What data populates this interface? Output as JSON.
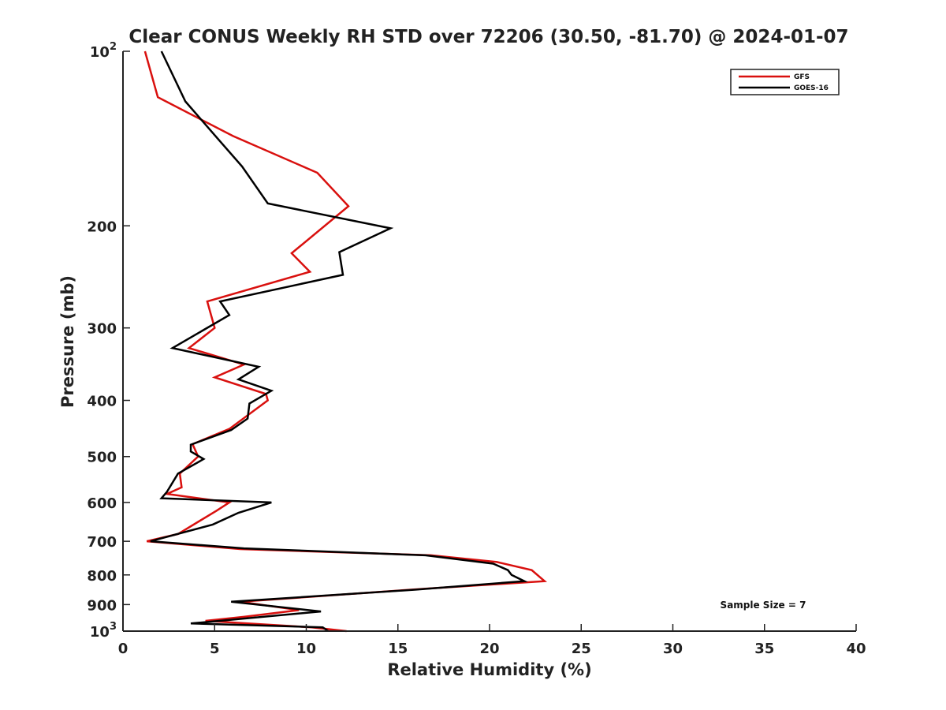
{
  "chart_data": {
    "type": "line",
    "title": "Clear CONUS Weekly RH STD over 72206 (30.50, -81.70) @ 2024-01-07",
    "xlabel": "Relative Humidity (%)",
    "ylabel": "Pressure (mb)",
    "xlim": [
      0,
      40
    ],
    "ylim": [
      100,
      1000
    ],
    "y_scale": "log",
    "y_reversed": true,
    "x_ticks": [
      "0",
      "5",
      "10",
      "15",
      "20",
      "25",
      "30",
      "35",
      "40"
    ],
    "y_ticks": [
      {
        "value": 100,
        "base": "10",
        "exp": "2"
      },
      {
        "value": 200,
        "label": "200"
      },
      {
        "value": 300,
        "label": "300"
      },
      {
        "value": 400,
        "label": "400"
      },
      {
        "value": 500,
        "label": "500"
      },
      {
        "value": 600,
        "label": "600"
      },
      {
        "value": 700,
        "label": "700"
      },
      {
        "value": 800,
        "label": "800"
      },
      {
        "value": 900,
        "label": "900"
      },
      {
        "value": 1000,
        "base": "10",
        "exp": "3"
      }
    ],
    "grid": false,
    "legend_position": "top-right",
    "annotation": "Sample Size = 7",
    "series": [
      {
        "name": "GFS",
        "color": "#d9100e",
        "points": [
          {
            "x": 1.2,
            "y": 100
          },
          {
            "x": 1.9,
            "y": 120
          },
          {
            "x": 6.0,
            "y": 140
          },
          {
            "x": 10.6,
            "y": 162
          },
          {
            "x": 12.3,
            "y": 185
          },
          {
            "x": 9.2,
            "y": 223
          },
          {
            "x": 10.2,
            "y": 240
          },
          {
            "x": 4.6,
            "y": 270
          },
          {
            "x": 5.0,
            "y": 300
          },
          {
            "x": 3.6,
            "y": 325
          },
          {
            "x": 6.6,
            "y": 347
          },
          {
            "x": 5.0,
            "y": 365
          },
          {
            "x": 7.8,
            "y": 390
          },
          {
            "x": 7.9,
            "y": 400
          },
          {
            "x": 5.8,
            "y": 448
          },
          {
            "x": 3.8,
            "y": 476
          },
          {
            "x": 4.1,
            "y": 500
          },
          {
            "x": 3.1,
            "y": 535
          },
          {
            "x": 3.2,
            "y": 565
          },
          {
            "x": 2.4,
            "y": 580
          },
          {
            "x": 5.8,
            "y": 600
          },
          {
            "x": 5.1,
            "y": 620
          },
          {
            "x": 3.0,
            "y": 680
          },
          {
            "x": 1.3,
            "y": 700
          },
          {
            "x": 6.4,
            "y": 722
          },
          {
            "x": 16.8,
            "y": 740
          },
          {
            "x": 20.4,
            "y": 760
          },
          {
            "x": 22.3,
            "y": 785
          },
          {
            "x": 23.0,
            "y": 820
          },
          {
            "x": 16.5,
            "y": 845
          },
          {
            "x": 6.4,
            "y": 890
          },
          {
            "x": 9.6,
            "y": 920
          },
          {
            "x": 6.6,
            "y": 945
          },
          {
            "x": 4.5,
            "y": 960
          },
          {
            "x": 10.3,
            "y": 985
          },
          {
            "x": 12.2,
            "y": 1000
          }
        ]
      },
      {
        "name": "GOES-16",
        "color": "#000000",
        "points": [
          {
            "x": 2.1,
            "y": 100
          },
          {
            "x": 3.4,
            "y": 122
          },
          {
            "x": 5.3,
            "y": 143
          },
          {
            "x": 6.5,
            "y": 158
          },
          {
            "x": 7.9,
            "y": 183
          },
          {
            "x": 14.6,
            "y": 202
          },
          {
            "x": 11.8,
            "y": 222
          },
          {
            "x": 12.0,
            "y": 243
          },
          {
            "x": 5.3,
            "y": 270
          },
          {
            "x": 5.8,
            "y": 285
          },
          {
            "x": 2.7,
            "y": 325
          },
          {
            "x": 7.4,
            "y": 350
          },
          {
            "x": 6.3,
            "y": 368
          },
          {
            "x": 8.1,
            "y": 385
          },
          {
            "x": 6.9,
            "y": 405
          },
          {
            "x": 6.8,
            "y": 430
          },
          {
            "x": 5.9,
            "y": 450
          },
          {
            "x": 3.7,
            "y": 477
          },
          {
            "x": 3.7,
            "y": 490
          },
          {
            "x": 4.4,
            "y": 505
          },
          {
            "x": 3.0,
            "y": 535
          },
          {
            "x": 2.4,
            "y": 575
          },
          {
            "x": 2.1,
            "y": 590
          },
          {
            "x": 8.1,
            "y": 600
          },
          {
            "x": 6.3,
            "y": 625
          },
          {
            "x": 4.9,
            "y": 655
          },
          {
            "x": 1.5,
            "y": 700
          },
          {
            "x": 6.6,
            "y": 720
          },
          {
            "x": 16.5,
            "y": 740
          },
          {
            "x": 20.2,
            "y": 765
          },
          {
            "x": 21.0,
            "y": 785
          },
          {
            "x": 21.2,
            "y": 800
          },
          {
            "x": 21.9,
            "y": 820
          },
          {
            "x": 16.0,
            "y": 848
          },
          {
            "x": 5.9,
            "y": 890
          },
          {
            "x": 10.8,
            "y": 925
          },
          {
            "x": 3.7,
            "y": 970
          },
          {
            "x": 10.9,
            "y": 985
          },
          {
            "x": 11.2,
            "y": 1000
          }
        ]
      }
    ]
  }
}
